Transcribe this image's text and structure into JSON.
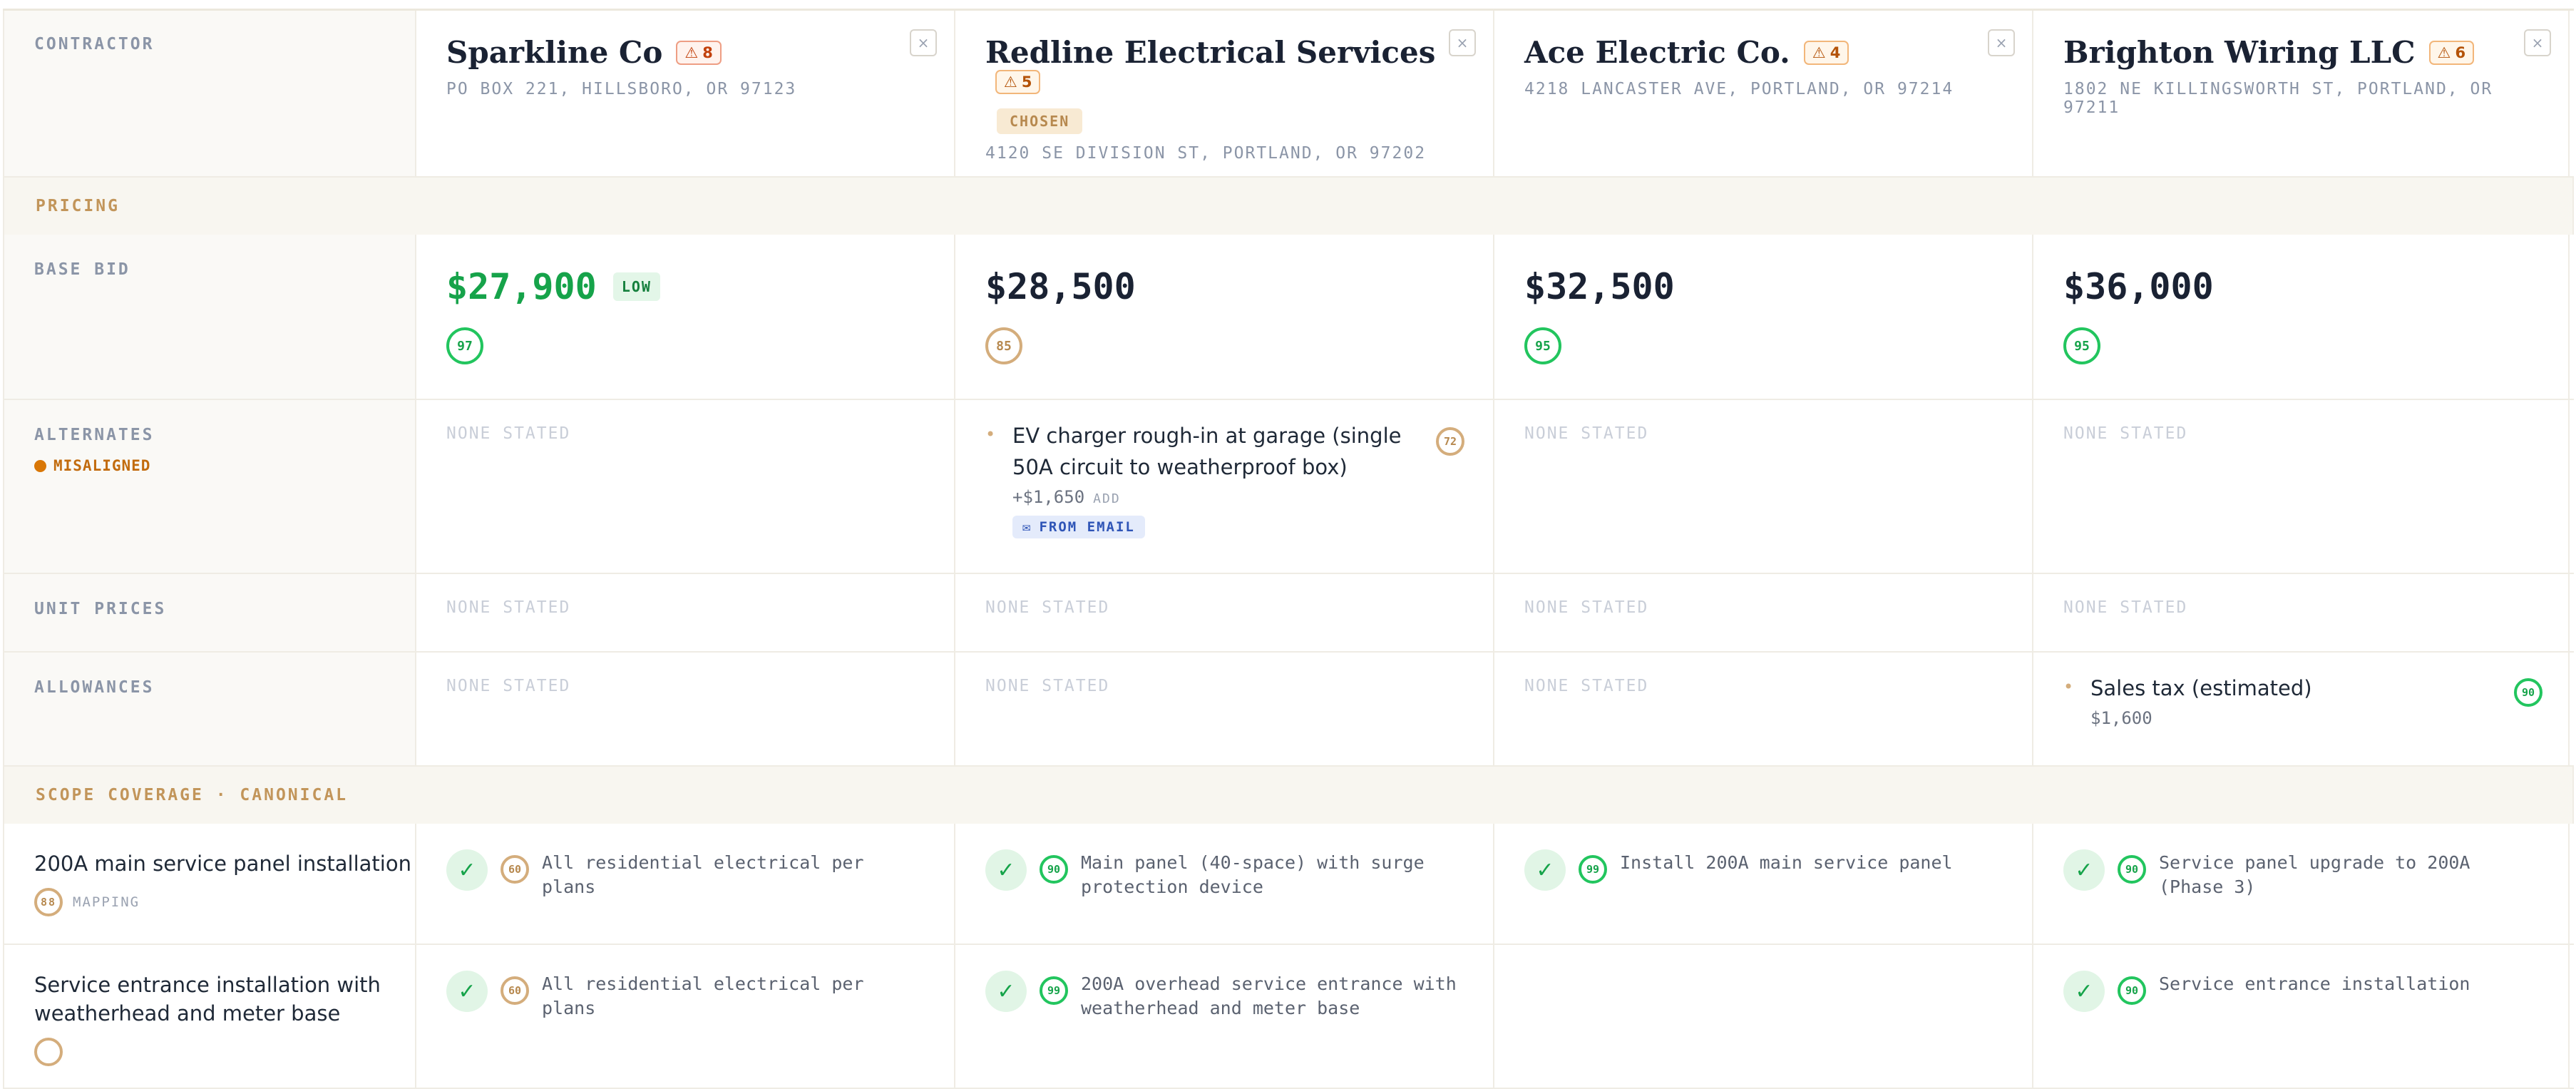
{
  "header_label": "CONTRACTOR",
  "contractors": [
    {
      "name": "Sparkline Co",
      "warnings": "8",
      "address": "PO BOX 221, HILLSBORO, OR 97123",
      "chosen": false,
      "bid": "$27,900",
      "low_tag": "LOW",
      "bid_confidence": "97",
      "close": "×"
    },
    {
      "name": "Redline Electrical Services",
      "warnings": "5",
      "address": "4120 SE DIVISION ST, PORTLAND, OR 97202",
      "chosen": true,
      "chosen_label": "CHOSEN",
      "bid": "$28,500",
      "bid_confidence": "85",
      "close": "×"
    },
    {
      "name": "Ace Electric Co.",
      "warnings": "4",
      "address": "4218 LANCASTER AVE, PORTLAND, OR 97214",
      "chosen": false,
      "bid": "$32,500",
      "bid_confidence": "95",
      "close": "×"
    },
    {
      "name": "Brighton Wiring LLC",
      "warnings": "6",
      "address": "1802 NE KILLINGSWORTH ST, PORTLAND, OR 97211",
      "chosen": false,
      "bid": "$36,000",
      "bid_confidence": "95",
      "close": "×"
    }
  ],
  "sections": {
    "pricing": "PRICING",
    "scope": "SCOPE COVERAGE · CANONICAL"
  },
  "rows": {
    "base_bid": "BASE BID",
    "alternates": "ALTERNATES",
    "misaligned": "MISALIGNED",
    "unit_prices": "UNIT PRICES",
    "allowances": "ALLOWANCES"
  },
  "none_stated": "NONE STATED",
  "alternate_item": {
    "text": "EV charger rough-in at garage (single 50A circuit to weatherproof box)",
    "amount": "+$1,650",
    "kind": "ADD",
    "source": "FROM EMAIL",
    "confidence": "72"
  },
  "allowance_item": {
    "text": "Sales tax (estimated)",
    "amount": "$1,600",
    "confidence": "90"
  },
  "scope_items": [
    {
      "canonical": "200A main service panel installation",
      "mapping_confidence": "88",
      "mapping_label": "MAPPING",
      "cells": [
        {
          "confidence": "60",
          "text": "All residential electrical per plans"
        },
        {
          "confidence": "90",
          "text": "Main panel (40-space) with surge protection device"
        },
        {
          "confidence": "99",
          "text": "Install 200A main service panel"
        },
        {
          "confidence": "90",
          "text": "Service panel upgrade to 200A (Phase 3)"
        }
      ]
    },
    {
      "canonical": "Service entrance installation with weatherhead and meter base",
      "cells": [
        {
          "confidence": "60",
          "text": "All residential electrical per plans"
        },
        {
          "confidence": "99",
          "text": "200A overhead service entrance with weatherhead and meter base"
        },
        null,
        {
          "confidence": "90",
          "text": "Service entrance installation"
        }
      ]
    }
  ],
  "colors": {
    "low": "#16a34a",
    "accent": "#c2955a",
    "warn": "#c2410c",
    "misaligned": "#d97706"
  }
}
